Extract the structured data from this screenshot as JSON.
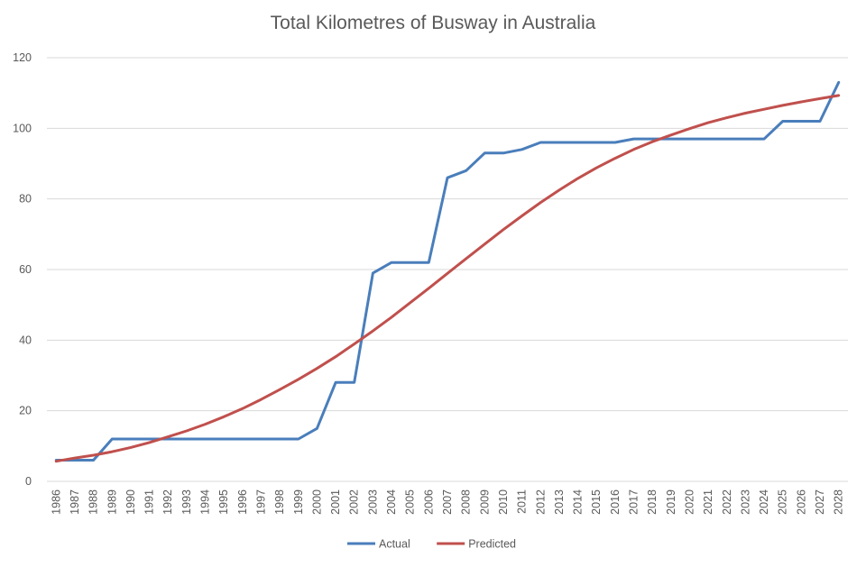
{
  "chart_data": {
    "type": "line",
    "title": "Total Kilometres of Busway in Australia",
    "xlabel": "",
    "ylabel": "",
    "ylim": [
      0,
      120
    ],
    "yticks": [
      "0",
      "20",
      "40",
      "60",
      "80",
      "100",
      "120"
    ],
    "grid": true,
    "legend_position": "bottom",
    "categories": [
      "1986",
      "1987",
      "1988",
      "1989",
      "1990",
      "1991",
      "1992",
      "1993",
      "1994",
      "1995",
      "1996",
      "1997",
      "1998",
      "1999",
      "2000",
      "2001",
      "2002",
      "2003",
      "2004",
      "2005",
      "2006",
      "2007",
      "2008",
      "2009",
      "2010",
      "2011",
      "2012",
      "2013",
      "2014",
      "2015",
      "2016",
      "2017",
      "2018",
      "2019",
      "2020",
      "2021",
      "2022",
      "2023",
      "2024",
      "2025",
      "2026",
      "2027",
      "2028"
    ],
    "series": [
      {
        "name": "Actual",
        "color": "#4a7ebb",
        "values": [
          6,
          6,
          6,
          12,
          12,
          12,
          12,
          12,
          12,
          12,
          12,
          12,
          12,
          12,
          15,
          28,
          28,
          59,
          62,
          62,
          62,
          86,
          88,
          93,
          93,
          94,
          96,
          96,
          96,
          96,
          96,
          97,
          97,
          97,
          97,
          97,
          97,
          97,
          97,
          102,
          102,
          102,
          113
        ]
      },
      {
        "name": "Predicted",
        "color": "#c0504d",
        "values": [
          5.7,
          6.6,
          7.4,
          8.4,
          9.6,
          11.0,
          12.6,
          14.3,
          16.2,
          18.3,
          20.6,
          23.2,
          26.0,
          28.9,
          32.0,
          35.3,
          38.9,
          42.6,
          46.5,
          50.6,
          54.7,
          58.9,
          63.1,
          67.2,
          71.3,
          75.2,
          79.0,
          82.5,
          85.8,
          88.8,
          91.5,
          94.0,
          96.2,
          98.1,
          99.9,
          101.6,
          103.0,
          104.3,
          105.4,
          106.5,
          107.5,
          108.4,
          109.3
        ]
      }
    ]
  }
}
